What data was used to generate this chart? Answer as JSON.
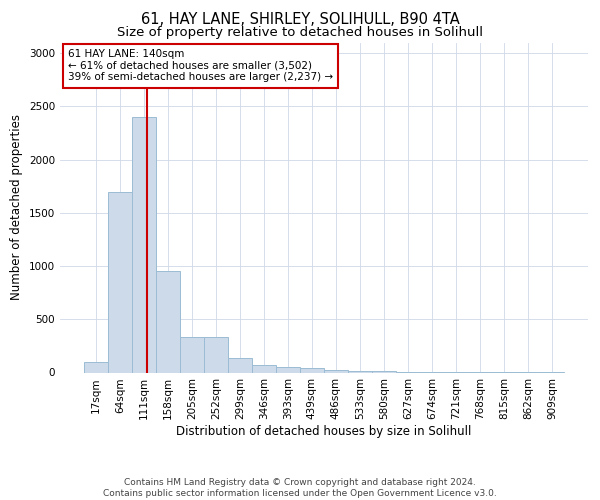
{
  "title1": "61, HAY LANE, SHIRLEY, SOLIHULL, B90 4TA",
  "title2": "Size of property relative to detached houses in Solihull",
  "xlabel": "Distribution of detached houses by size in Solihull",
  "ylabel": "Number of detached properties",
  "bar_edges": [
    17,
    64,
    111,
    158,
    205,
    252,
    299,
    346,
    393,
    439,
    486,
    533,
    580,
    627,
    674,
    721,
    768,
    815,
    862,
    909,
    956
  ],
  "bar_heights": [
    100,
    1700,
    2400,
    950,
    330,
    330,
    140,
    75,
    50,
    40,
    20,
    15,
    12,
    8,
    5,
    4,
    3,
    2,
    1,
    1
  ],
  "bar_color": "#ccdaea",
  "bar_edgecolor": "#9bbcd4",
  "vline_x": 140,
  "vline_color": "#cc0000",
  "annotation_line1": "61 HAY LANE: 140sqm",
  "annotation_line2": "← 61% of detached houses are smaller (3,502)",
  "annotation_line3": "39% of semi-detached houses are larger (2,237) →",
  "annotation_box_color": "#cc0000",
  "ylim": [
    0,
    3100
  ],
  "yticks": [
    0,
    500,
    1000,
    1500,
    2000,
    2500,
    3000
  ],
  "grid_color": "#d0d8e8",
  "background_color": "#ffffff",
  "footer_text": "Contains HM Land Registry data © Crown copyright and database right 2024.\nContains public sector information licensed under the Open Government Licence v3.0.",
  "title1_fontsize": 10.5,
  "title2_fontsize": 9.5,
  "xlabel_fontsize": 8.5,
  "ylabel_fontsize": 8.5,
  "tick_fontsize": 7.5,
  "annotation_fontsize": 7.5,
  "footer_fontsize": 6.5
}
